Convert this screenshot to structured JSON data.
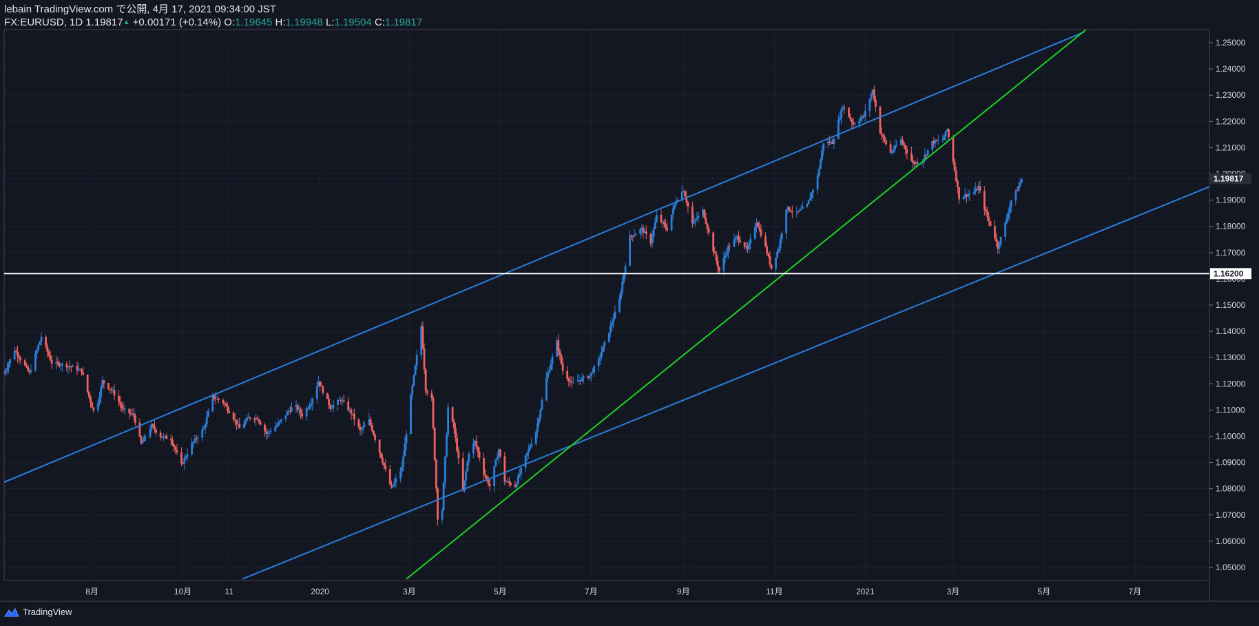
{
  "header": {
    "line1": "lebain TradingView.com で公開, 4月 17, 2021 09:34:00 JST",
    "symbol": "FX:EURUSD, 1D",
    "last": "1.19817",
    "arrow": "▲",
    "change": "+0.00171 (+0.14%)",
    "o_label": "O:",
    "o_val": "1.19645",
    "h_label": "H:",
    "h_val": "1.19948",
    "l_label": "L:",
    "l_val": "1.19504",
    "c_label": "C:",
    "c_val": "1.19817"
  },
  "footer": {
    "brand": "TradingView",
    "icon": "tradingview-logo-icon"
  },
  "colors": {
    "background": "#131722",
    "up": "#2a7fdc",
    "down": "#f0625f",
    "trend_blue": "#2a7fdc",
    "trend_green": "#1ed21e",
    "hline": "#ffffff",
    "grid": "#1e2230",
    "axis_text": "#d1d4dc"
  },
  "chart_data": {
    "type": "candlestick",
    "symbol": "FX:EURUSD",
    "interval": "1D",
    "ylim": [
      1.045,
      1.255
    ],
    "y_ticks": [
      "1.25000",
      "1.24000",
      "1.23000",
      "1.22000",
      "1.21000",
      "1.20000",
      "1.19000",
      "1.18000",
      "1.17000",
      "1.16000",
      "1.15000",
      "1.14000",
      "1.13000",
      "1.12000",
      "1.11000",
      "1.10000",
      "1.09000",
      "1.08000",
      "1.07000",
      "1.06000",
      "1.05000"
    ],
    "y_tick_values": [
      1.25,
      1.24,
      1.23,
      1.22,
      1.21,
      1.2,
      1.19,
      1.18,
      1.17,
      1.16,
      1.15,
      1.14,
      1.13,
      1.12,
      1.11,
      1.1,
      1.09,
      1.08,
      1.07,
      1.06,
      1.05
    ],
    "x_ticks": [
      "8月",
      "10月",
      "11",
      "2020",
      "3月",
      "5月",
      "7月",
      "9月",
      "11月",
      "2021",
      "3月",
      "5月",
      "7月"
    ],
    "x_tick_dates": [
      "2019-08-01",
      "2019-10-01",
      "2019-11-01",
      "2020-01-01",
      "2020-03-01",
      "2020-05-01",
      "2020-07-01",
      "2020-09-01",
      "2020-11-01",
      "2021-01-01",
      "2021-03-01",
      "2021-05-01",
      "2021-07-01"
    ],
    "xlim": [
      "2019-06-03",
      "2021-08-20"
    ],
    "price_label": "1.19817",
    "hline_label": "1.16200",
    "hline_value": 1.162,
    "trendlines": [
      {
        "color": "blue",
        "points": [
          [
            "2019-06-03",
            1.0825
          ],
          [
            "2021-05-28",
            1.2541
          ]
        ]
      },
      {
        "color": "blue",
        "points": [
          [
            "2019-11-10",
            1.0456
          ],
          [
            "2021-08-20",
            1.1951
          ]
        ]
      },
      {
        "color": "green",
        "points": [
          [
            "2020-02-28",
            1.0456
          ],
          [
            "2021-05-29",
            1.2549
          ]
        ]
      }
    ],
    "close_path": [
      [
        "2019-06-03",
        1.124
      ],
      [
        "2019-06-10",
        1.133
      ],
      [
        "2019-06-20",
        1.124
      ],
      [
        "2019-06-28",
        1.138
      ],
      [
        "2019-07-05",
        1.128
      ],
      [
        "2019-07-15",
        1.127
      ],
      [
        "2019-07-25",
        1.125
      ],
      [
        "2019-07-30",
        1.115
      ],
      [
        "2019-08-03",
        1.108
      ],
      [
        "2019-08-08",
        1.121
      ],
      [
        "2019-08-15",
        1.117
      ],
      [
        "2019-08-22",
        1.11
      ],
      [
        "2019-08-29",
        1.108
      ],
      [
        "2019-09-03",
        1.097
      ],
      [
        "2019-09-10",
        1.104
      ],
      [
        "2019-09-16",
        1.1
      ],
      [
        "2019-09-23",
        1.099
      ],
      [
        "2019-09-30",
        1.089
      ],
      [
        "2019-10-07",
        1.097
      ],
      [
        "2019-10-15",
        1.103
      ],
      [
        "2019-10-21",
        1.115
      ],
      [
        "2019-10-28",
        1.113
      ],
      [
        "2019-11-04",
        1.107
      ],
      [
        "2019-11-08",
        1.103
      ],
      [
        "2019-11-14",
        1.107
      ],
      [
        "2019-11-20",
        1.107
      ],
      [
        "2019-11-26",
        1.101
      ],
      [
        "2019-12-03",
        1.104
      ],
      [
        "2019-12-10",
        1.109
      ],
      [
        "2019-12-15",
        1.112
      ],
      [
        "2019-12-20",
        1.108
      ],
      [
        "2019-12-26",
        1.113
      ],
      [
        "2019-12-31",
        1.121
      ],
      [
        "2020-01-08",
        1.111
      ],
      [
        "2020-01-15",
        1.114
      ],
      [
        "2020-01-22",
        1.109
      ],
      [
        "2020-01-28",
        1.102
      ],
      [
        "2020-02-03",
        1.106
      ],
      [
        "2020-02-10",
        1.094
      ],
      [
        "2020-02-18",
        1.08
      ],
      [
        "2020-02-25",
        1.088
      ],
      [
        "2020-03-02",
        1.115
      ],
      [
        "2020-03-09",
        1.142
      ],
      [
        "2020-03-12",
        1.118
      ],
      [
        "2020-03-16",
        1.114
      ],
      [
        "2020-03-20",
        1.069
      ],
      [
        "2020-03-23",
        1.072
      ],
      [
        "2020-03-27",
        1.111
      ],
      [
        "2020-03-31",
        1.103
      ],
      [
        "2020-04-06",
        1.079
      ],
      [
        "2020-04-10",
        1.094
      ],
      [
        "2020-04-14",
        1.098
      ],
      [
        "2020-04-20",
        1.086
      ],
      [
        "2020-04-24",
        1.081
      ],
      [
        "2020-04-30",
        1.095
      ],
      [
        "2020-05-04",
        1.083
      ],
      [
        "2020-05-11",
        1.081
      ],
      [
        "2020-05-18",
        1.092
      ],
      [
        "2020-05-25",
        1.102
      ],
      [
        "2020-06-01",
        1.122
      ],
      [
        "2020-06-08",
        1.136
      ],
      [
        "2020-06-12",
        1.125
      ],
      [
        "2020-06-18",
        1.12
      ],
      [
        "2020-06-25",
        1.122
      ],
      [
        "2020-06-30",
        1.123
      ],
      [
        "2020-07-06",
        1.129
      ],
      [
        "2020-07-13",
        1.14
      ],
      [
        "2020-07-20",
        1.152
      ],
      [
        "2020-07-27",
        1.176
      ],
      [
        "2020-08-04",
        1.179
      ],
      [
        "2020-08-10",
        1.174
      ],
      [
        "2020-08-14",
        1.184
      ],
      [
        "2020-08-21",
        1.179
      ],
      [
        "2020-08-27",
        1.19
      ],
      [
        "2020-09-01",
        1.194
      ],
      [
        "2020-09-07",
        1.181
      ],
      [
        "2020-09-14",
        1.186
      ],
      [
        "2020-09-21",
        1.171
      ],
      [
        "2020-09-25",
        1.163
      ],
      [
        "2020-10-01",
        1.172
      ],
      [
        "2020-10-07",
        1.176
      ],
      [
        "2020-10-14",
        1.171
      ],
      [
        "2020-10-20",
        1.182
      ],
      [
        "2020-10-26",
        1.172
      ],
      [
        "2020-10-30",
        1.164
      ],
      [
        "2020-11-04",
        1.172
      ],
      [
        "2020-11-09",
        1.187
      ],
      [
        "2020-11-16",
        1.185
      ],
      [
        "2020-11-23",
        1.188
      ],
      [
        "2020-11-30",
        1.199
      ],
      [
        "2020-12-04",
        1.212
      ],
      [
        "2020-12-10",
        1.212
      ],
      [
        "2020-12-17",
        1.226
      ],
      [
        "2020-12-24",
        1.219
      ],
      [
        "2020-12-31",
        1.222
      ],
      [
        "2021-01-06",
        1.232
      ],
      [
        "2021-01-11",
        1.216
      ],
      [
        "2021-01-18",
        1.208
      ],
      [
        "2021-01-25",
        1.213
      ],
      [
        "2021-02-02",
        1.204
      ],
      [
        "2021-02-08",
        1.205
      ],
      [
        "2021-02-15",
        1.212
      ],
      [
        "2021-02-22",
        1.213
      ],
      [
        "2021-02-25",
        1.217
      ],
      [
        "2021-03-01",
        1.205
      ],
      [
        "2021-03-05",
        1.191
      ],
      [
        "2021-03-10",
        1.192
      ],
      [
        "2021-03-15",
        1.193
      ],
      [
        "2021-03-18",
        1.195
      ],
      [
        "2021-03-23",
        1.185
      ],
      [
        "2021-03-29",
        1.176
      ],
      [
        "2021-03-31",
        1.172
      ],
      [
        "2021-04-05",
        1.181
      ],
      [
        "2021-04-09",
        1.19
      ],
      [
        "2021-04-13",
        1.194
      ],
      [
        "2021-04-16",
        1.198
      ]
    ]
  }
}
